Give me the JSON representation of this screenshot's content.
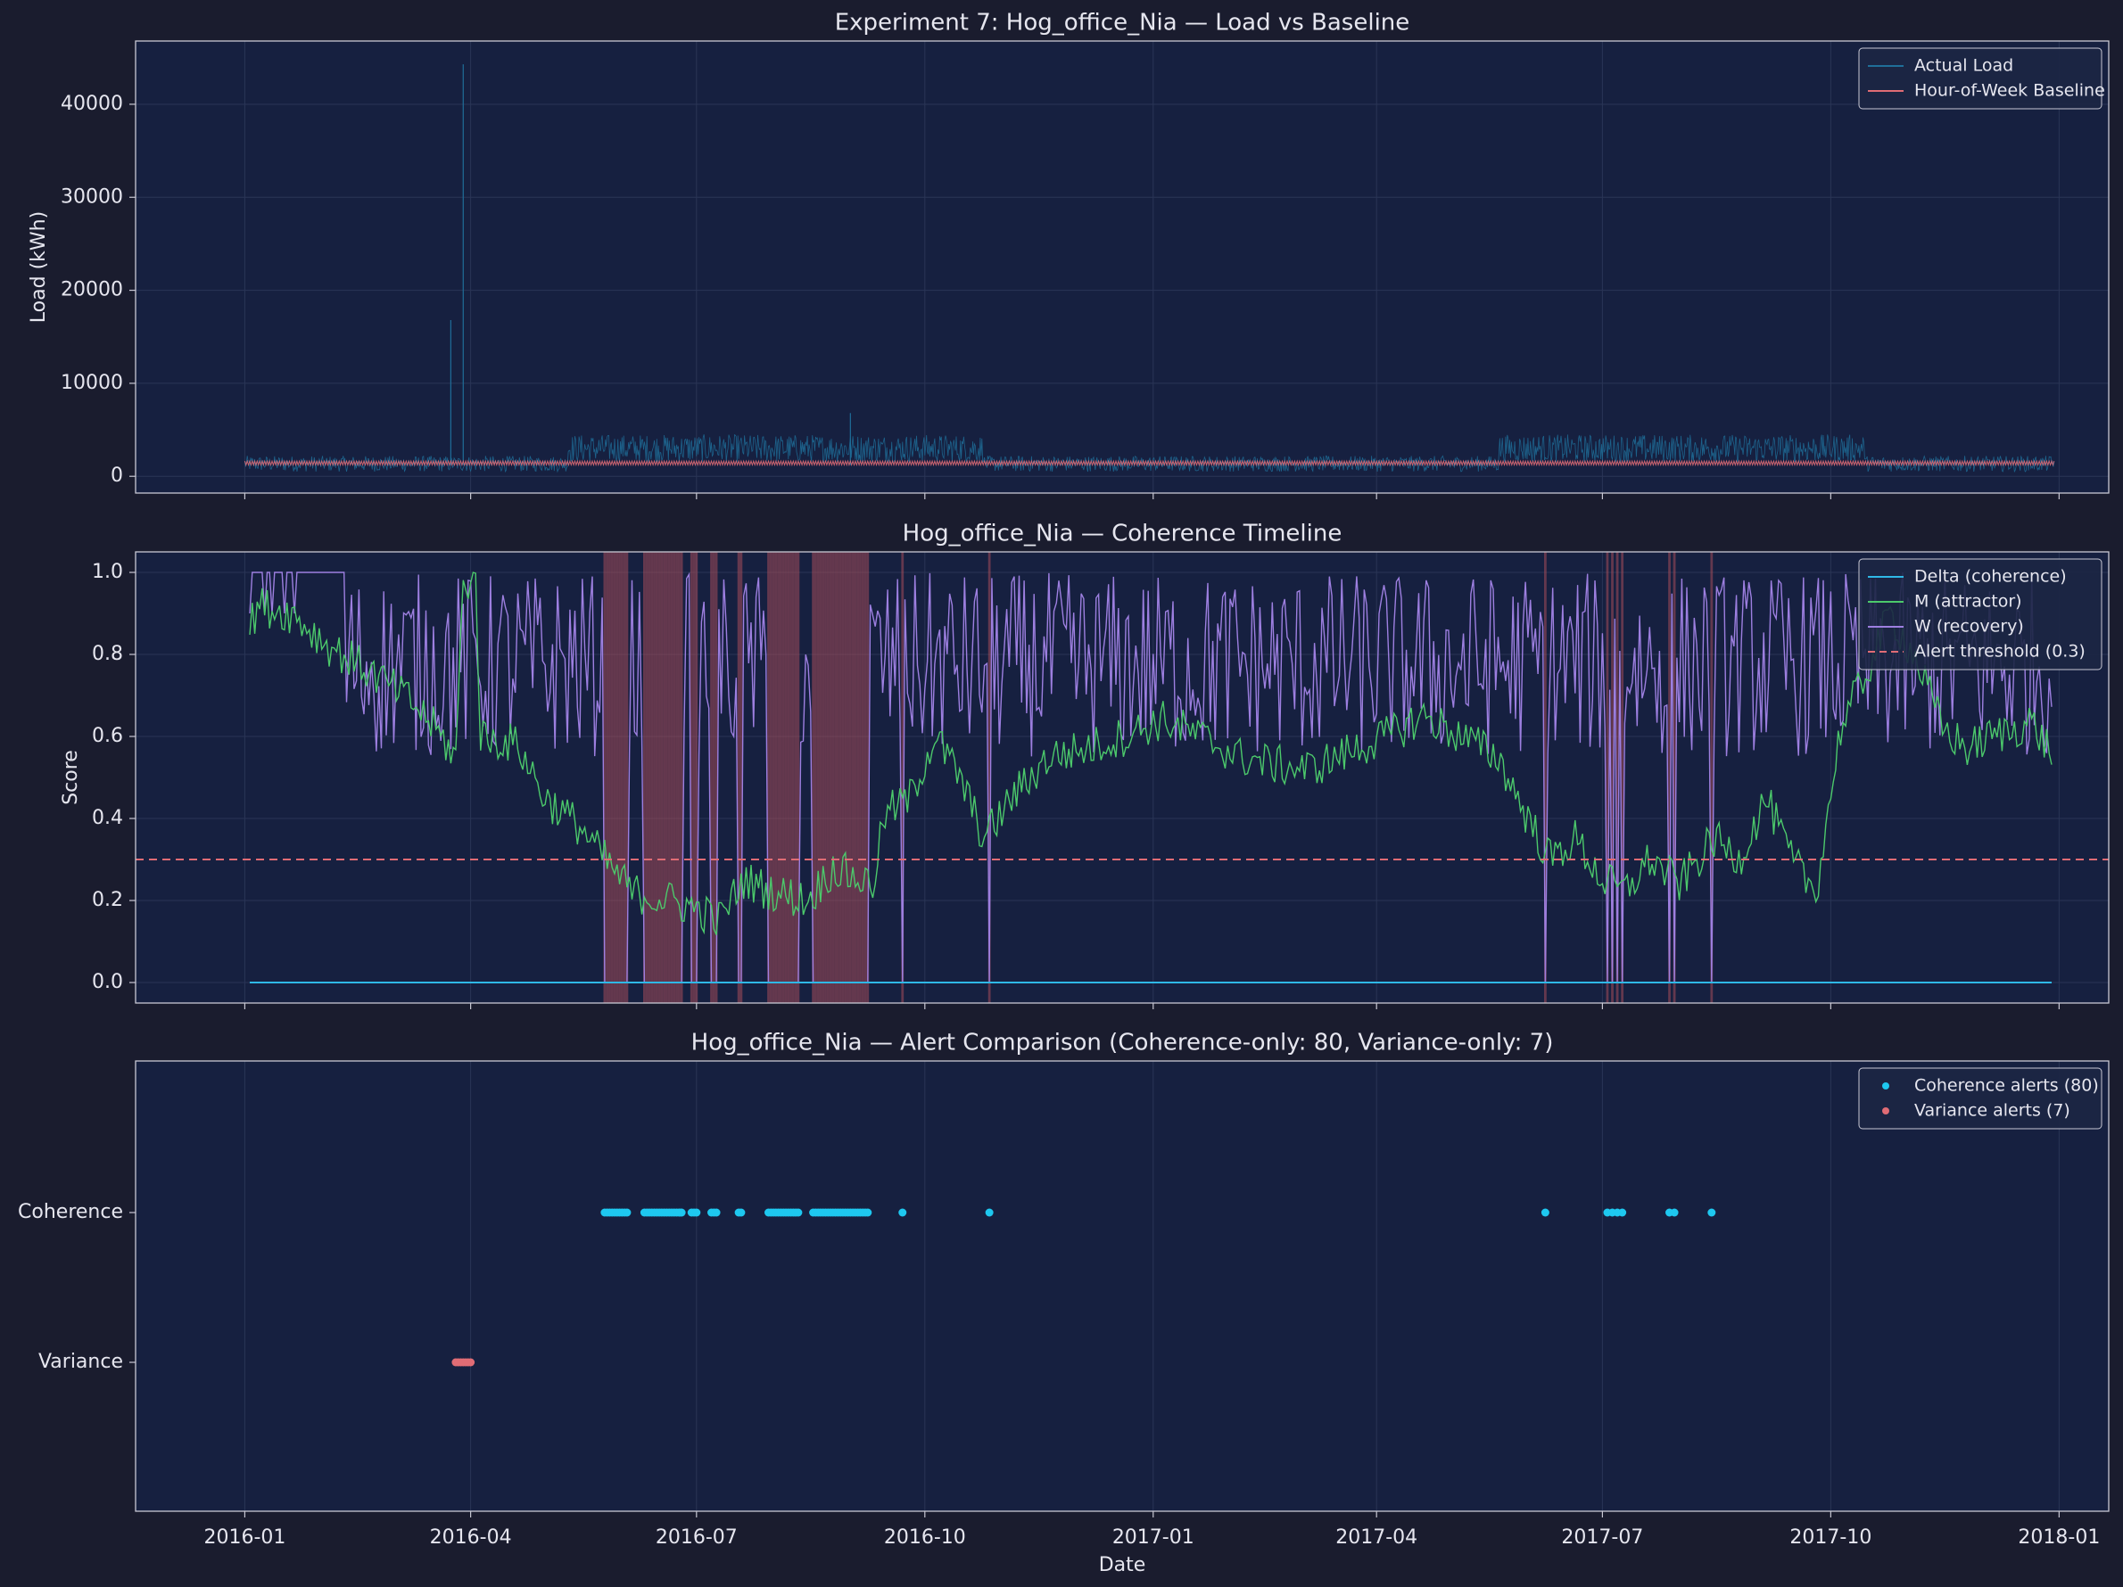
{
  "figure": {
    "background": "#1a1c2e",
    "axes_background": "#162040",
    "text_color": "#e6e6ef",
    "grid_color": "#2a3556",
    "spine_color": "#c8c8d4",
    "xlabel": "Date",
    "x_ticks": [
      {
        "date": "2016-01-01",
        "label": "2016-01"
      },
      {
        "date": "2016-04-01",
        "label": "2016-04"
      },
      {
        "date": "2016-07-01",
        "label": "2016-07"
      },
      {
        "date": "2016-10-01",
        "label": "2016-10"
      },
      {
        "date": "2017-01-01",
        "label": "2017-01"
      },
      {
        "date": "2017-04-01",
        "label": "2017-04"
      },
      {
        "date": "2017-07-01",
        "label": "2017-07"
      },
      {
        "date": "2017-10-01",
        "label": "2017-10"
      },
      {
        "date": "2018-01-01",
        "label": "2018-01"
      }
    ]
  },
  "chart_data": [
    {
      "type": "line",
      "title": "Experiment 7: Hog_office_Nia — Load vs Baseline",
      "xlabel": "",
      "ylabel": "Load (kWh)",
      "xlim": [
        "2015-11-18",
        "2018-01-21"
      ],
      "ylim": [
        -1800,
        46800
      ],
      "yticks": [
        0,
        10000,
        20000,
        30000,
        40000
      ],
      "ytick_labels": [
        "0",
        "10000",
        "20000",
        "30000",
        "40000"
      ],
      "grid": true,
      "legend_position": "top-right",
      "series": [
        {
          "name": "Actual Load",
          "color": "#1f6e99",
          "typical_range": [
            500,
            2200
          ],
          "summer_range_2016": [
            1500,
            4500
          ],
          "summer_range_2017": [
            1500,
            4500
          ],
          "spikes": [
            {
              "date": "2016-03-24",
              "value": 16800
            },
            {
              "date": "2016-03-29",
              "value": 44300
            },
            {
              "date": "2016-09-01",
              "value": 6800
            }
          ]
        },
        {
          "name": "Hour-of-Week Baseline",
          "color": "#e06c75",
          "range": [
            1100,
            1700
          ]
        }
      ]
    },
    {
      "type": "line",
      "title": "Hog_office_Nia — Coherence Timeline",
      "xlabel": "",
      "ylabel": "Score",
      "xlim": [
        "2015-11-18",
        "2018-01-21"
      ],
      "ylim": [
        -0.05,
        1.05
      ],
      "yticks": [
        0.0,
        0.2,
        0.4,
        0.6,
        0.8,
        1.0
      ],
      "ytick_labels": [
        "0.0",
        "0.2",
        "0.4",
        "0.6",
        "0.8",
        "1.0"
      ],
      "grid": true,
      "legend_position": "top-right",
      "threshold": {
        "name": "Alert threshold (0.3)",
        "value": 0.3,
        "color": "#e06c75",
        "style": "dashed"
      },
      "alert_spans_color": "#a64d5a",
      "series": [
        {
          "name": "Delta (coherence)",
          "color": "#2fb8e6",
          "constant": 0.0,
          "x_range": [
            "2016-01-03",
            "2017-12-29"
          ]
        },
        {
          "name": "M (attractor)",
          "color": "#4cc96b",
          "keypoints": [
            [
              "2016-01-03",
              0.86
            ],
            [
              "2016-01-06",
              0.92
            ],
            [
              "2016-01-20",
              0.9
            ],
            [
              "2016-02-04",
              0.82
            ],
            [
              "2016-02-20",
              0.76
            ],
            [
              "2016-03-07",
              0.69
            ],
            [
              "2016-03-15",
              0.64
            ],
            [
              "2016-03-26",
              0.55
            ],
            [
              "2016-03-29",
              0.97
            ],
            [
              "2016-04-03",
              0.99
            ],
            [
              "2016-04-05",
              0.6
            ],
            [
              "2016-04-20",
              0.58
            ],
            [
              "2016-05-01",
              0.45
            ],
            [
              "2016-05-15",
              0.38
            ],
            [
              "2016-05-25",
              0.3
            ],
            [
              "2016-06-05",
              0.22
            ],
            [
              "2016-06-20",
              0.2
            ],
            [
              "2016-07-01",
              0.18
            ],
            [
              "2016-07-10",
              0.15
            ],
            [
              "2016-07-20",
              0.25
            ],
            [
              "2016-08-01",
              0.22
            ],
            [
              "2016-08-15",
              0.2
            ],
            [
              "2016-08-25",
              0.28
            ],
            [
              "2016-09-05",
              0.25
            ],
            [
              "2016-09-10",
              0.24
            ],
            [
              "2016-09-15",
              0.41
            ],
            [
              "2016-09-25",
              0.45
            ],
            [
              "2016-10-05",
              0.6
            ],
            [
              "2016-10-15",
              0.5
            ],
            [
              "2016-10-25",
              0.35
            ],
            [
              "2016-11-05",
              0.45
            ],
            [
              "2016-11-20",
              0.55
            ],
            [
              "2016-12-05",
              0.57
            ],
            [
              "2016-12-20",
              0.6
            ],
            [
              "2017-01-05",
              0.64
            ],
            [
              "2017-01-20",
              0.6
            ],
            [
              "2017-02-05",
              0.55
            ],
            [
              "2017-02-20",
              0.53
            ],
            [
              "2017-03-05",
              0.52
            ],
            [
              "2017-03-20",
              0.56
            ],
            [
              "2017-04-05",
              0.6
            ],
            [
              "2017-04-20",
              0.65
            ],
            [
              "2017-05-05",
              0.6
            ],
            [
              "2017-05-20",
              0.55
            ],
            [
              "2017-06-01",
              0.4
            ],
            [
              "2017-06-10",
              0.3
            ],
            [
              "2017-06-20",
              0.35
            ],
            [
              "2017-07-01",
              0.25
            ],
            [
              "2017-07-10",
              0.22
            ],
            [
              "2017-07-20",
              0.3
            ],
            [
              "2017-08-01",
              0.24
            ],
            [
              "2017-08-15",
              0.35
            ],
            [
              "2017-08-25",
              0.3
            ],
            [
              "2017-09-05",
              0.45
            ],
            [
              "2017-09-15",
              0.3
            ],
            [
              "2017-09-25",
              0.22
            ],
            [
              "2017-10-05",
              0.62
            ],
            [
              "2017-10-15",
              0.75
            ],
            [
              "2017-10-25",
              0.9
            ],
            [
              "2017-11-05",
              0.78
            ],
            [
              "2017-11-15",
              0.62
            ],
            [
              "2017-11-25",
              0.57
            ],
            [
              "2017-12-05",
              0.6
            ],
            [
              "2017-12-15",
              0.62
            ],
            [
              "2017-12-20",
              0.64
            ],
            [
              "2017-12-29",
              0.56
            ]
          ]
        },
        {
          "name": "W (recovery)",
          "color": "#9d7fe0",
          "range": [
            0.0,
            1.0
          ],
          "plateau_end": "2016-02-10",
          "plateau_value": 1.0
        }
      ]
    },
    {
      "type": "scatter",
      "title": "Hog_office_Nia — Alert Comparison (Coherence-only: 80, Variance-only: 7)",
      "xlabel": "Date",
      "ylabel": "",
      "xlim": [
        "2015-11-18",
        "2018-01-21"
      ],
      "categories": [
        "Coherence",
        "Variance"
      ],
      "grid": true,
      "legend_position": "top-right",
      "series": [
        {
          "name": "Coherence alerts (80)",
          "color": "#1ec8f0",
          "category": "Coherence",
          "x": [
            "2016-05-25",
            "2016-05-26",
            "2016-05-27",
            "2016-05-28",
            "2016-05-29",
            "2016-05-30",
            "2016-05-31",
            "2016-06-01",
            "2016-06-02",
            "2016-06-03",
            "2016-06-10",
            "2016-06-11",
            "2016-06-12",
            "2016-06-13",
            "2016-06-14",
            "2016-06-15",
            "2016-06-16",
            "2016-06-17",
            "2016-06-18",
            "2016-06-19",
            "2016-06-20",
            "2016-06-21",
            "2016-06-22",
            "2016-06-23",
            "2016-06-24",
            "2016-06-25",
            "2016-06-29",
            "2016-06-30",
            "2016-07-01",
            "2016-07-07",
            "2016-07-08",
            "2016-07-09",
            "2016-07-18",
            "2016-07-19",
            "2016-07-30",
            "2016-07-31",
            "2016-08-01",
            "2016-08-02",
            "2016-08-03",
            "2016-08-04",
            "2016-08-05",
            "2016-08-06",
            "2016-08-07",
            "2016-08-08",
            "2016-08-09",
            "2016-08-10",
            "2016-08-11",
            "2016-08-17",
            "2016-08-18",
            "2016-08-19",
            "2016-08-20",
            "2016-08-21",
            "2016-08-22",
            "2016-08-23",
            "2016-08-24",
            "2016-08-25",
            "2016-08-26",
            "2016-08-27",
            "2016-08-28",
            "2016-08-29",
            "2016-08-30",
            "2016-08-31",
            "2016-09-01",
            "2016-09-02",
            "2016-09-03",
            "2016-09-04",
            "2016-09-05",
            "2016-09-06",
            "2016-09-07",
            "2016-09-08",
            "2016-09-22",
            "2016-10-27",
            "2017-06-08",
            "2017-07-03",
            "2017-07-05",
            "2017-07-07",
            "2017-07-09",
            "2017-07-28",
            "2017-07-30",
            "2017-08-14"
          ]
        },
        {
          "name": "Variance alerts (7)",
          "color": "#e06c75",
          "category": "Variance",
          "x": [
            "2016-03-26",
            "2016-03-27",
            "2016-03-28",
            "2016-03-29",
            "2016-03-30",
            "2016-03-31",
            "2016-04-01"
          ]
        }
      ]
    }
  ]
}
